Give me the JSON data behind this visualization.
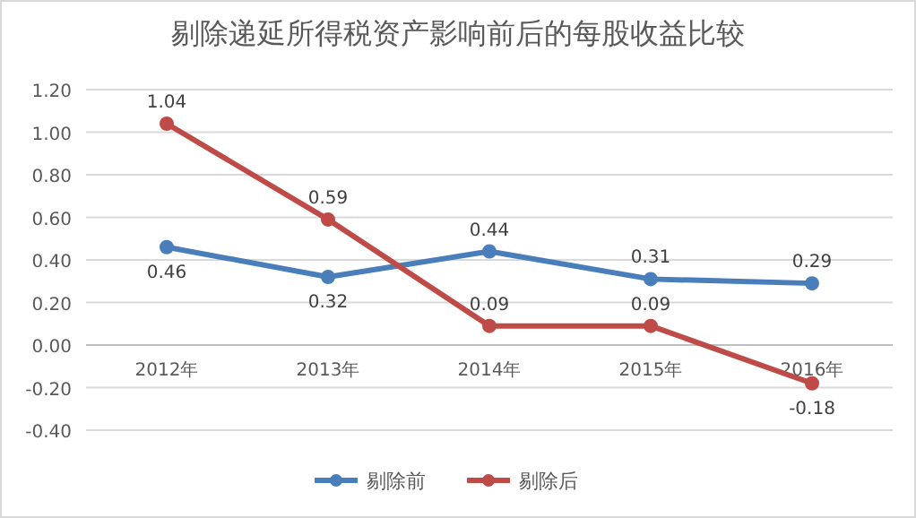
{
  "chart_data": {
    "type": "line",
    "title": "剔除递延所得税资产影响前后的每股收益比较",
    "categories": [
      "2012年",
      "2013年",
      "2014年",
      "2015年",
      "2016年"
    ],
    "series": [
      {
        "name": "剔除前",
        "color": "#4a7ebb",
        "values": [
          0.46,
          0.32,
          0.44,
          0.31,
          0.29
        ]
      },
      {
        "name": "剔除后",
        "color": "#be4b48",
        "values": [
          1.04,
          0.59,
          0.09,
          0.09,
          -0.18
        ]
      }
    ],
    "ylim": [
      -0.4,
      1.2
    ],
    "yticks": [
      {
        "value": -0.4,
        "label": "-0.40"
      },
      {
        "value": -0.2,
        "label": "-0.20"
      },
      {
        "value": 0,
        "label": "0.00"
      },
      {
        "value": 0.2,
        "label": "0.20"
      },
      {
        "value": 0.4,
        "label": "0.40"
      },
      {
        "value": 0.6,
        "label": "0.60"
      },
      {
        "value": 0.8,
        "label": "0.80"
      },
      {
        "value": 1.0,
        "label": "1.00"
      },
      {
        "value": 1.2,
        "label": "1.20"
      }
    ],
    "grid": "y",
    "legend": "bottom",
    "marker": "circle",
    "line_style": "solid",
    "data_labels": true
  }
}
